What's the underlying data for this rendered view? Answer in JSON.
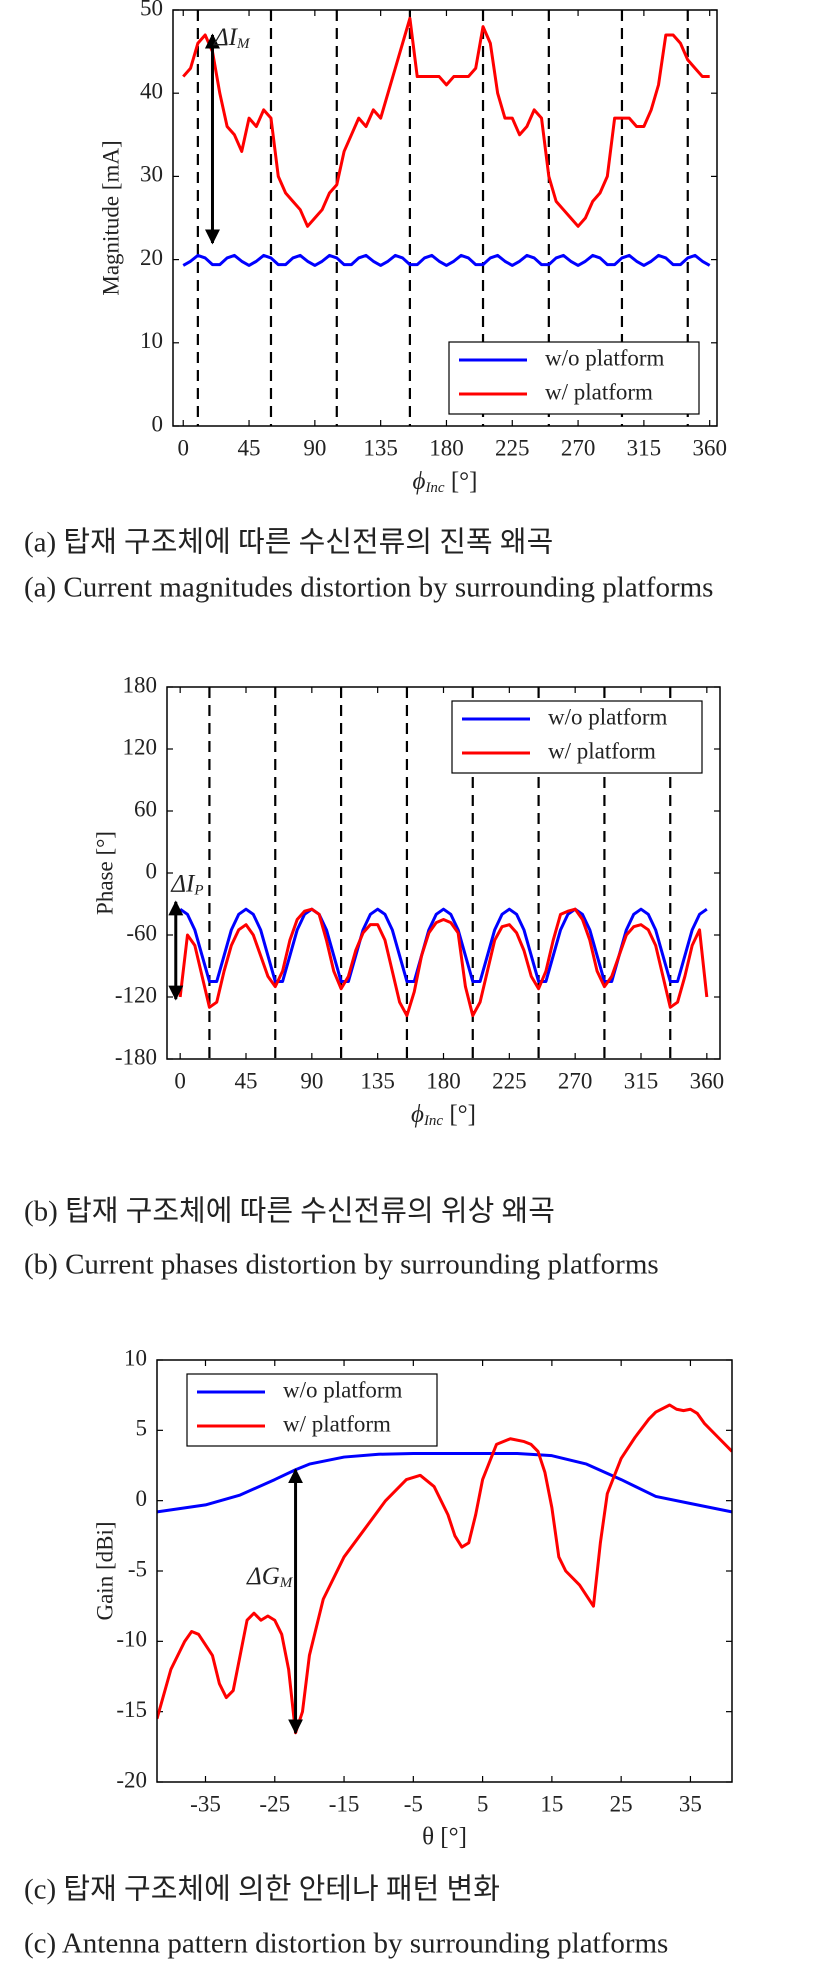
{
  "chart_data": [
    {
      "type": "line",
      "ylabel": "Magnitude [mA]",
      "xlabel": {
        "text": "ϕ",
        "sub": "Inc",
        "rest": " [°]"
      },
      "captions": [
        "(a) 탑재 구조체에 따른 수신전류의 진폭 왜곡",
        "(a) Current magnitudes distortion by surrounding platforms"
      ],
      "xlim": [
        -7,
        365
      ],
      "ylim": [
        0,
        50
      ],
      "xticks": [
        0,
        45,
        90,
        135,
        180,
        225,
        270,
        315,
        360
      ],
      "yticks": [
        0,
        10,
        20,
        30,
        40,
        50
      ],
      "legend": "lower right",
      "vlines": [
        10,
        60,
        105,
        155,
        205,
        250,
        300,
        345
      ],
      "arrow": {
        "x": 20,
        "y1": 22,
        "y2": 47
      },
      "annotation": {
        "x": 21,
        "y": 46.5,
        "label": {
          "text": "ΔI",
          "sub": "M"
        }
      },
      "x": [
        0,
        5,
        10,
        15,
        20,
        25,
        30,
        35,
        40,
        45,
        50,
        55,
        60,
        65,
        70,
        75,
        80,
        85,
        90,
        95,
        100,
        105,
        110,
        115,
        120,
        125,
        130,
        135,
        140,
        145,
        150,
        155,
        160,
        165,
        170,
        175,
        180,
        185,
        190,
        195,
        200,
        205,
        210,
        215,
        220,
        225,
        230,
        235,
        240,
        245,
        250,
        255,
        260,
        265,
        270,
        275,
        280,
        285,
        290,
        295,
        300,
        305,
        310,
        315,
        320,
        325,
        330,
        335,
        340,
        345,
        350,
        355,
        360
      ],
      "series": [
        {
          "name": "w/o platform",
          "color": "#0000ff",
          "values": [
            19.3,
            19.8,
            20.5,
            20.2,
            19.4,
            19.4,
            20.2,
            20.5,
            19.8,
            19.3,
            19.8,
            20.5,
            20.2,
            19.4,
            19.4,
            20.2,
            20.5,
            19.8,
            19.3,
            19.8,
            20.5,
            20.2,
            19.4,
            19.4,
            20.2,
            20.5,
            19.8,
            19.3,
            19.8,
            20.5,
            20.2,
            19.4,
            19.4,
            20.2,
            20.5,
            19.8,
            19.3,
            19.8,
            20.5,
            20.2,
            19.4,
            19.4,
            20.2,
            20.5,
            19.8,
            19.3,
            19.8,
            20.5,
            20.2,
            19.4,
            19.4,
            20.2,
            20.5,
            19.8,
            19.3,
            19.8,
            20.5,
            20.2,
            19.4,
            19.4,
            20.2,
            20.5,
            19.8,
            19.3,
            19.8,
            20.5,
            20.2,
            19.4,
            19.4,
            20.2,
            20.5,
            19.8,
            19.3
          ]
        },
        {
          "name": "w/ platform",
          "color": "#ff0000",
          "values": [
            42,
            43,
            46,
            47,
            45,
            40,
            36,
            35,
            33,
            37,
            36,
            38,
            37,
            30,
            28,
            27,
            26,
            24,
            25,
            26,
            28,
            29,
            33,
            35,
            37,
            36,
            38,
            37,
            40,
            43,
            46,
            49,
            42,
            42,
            42,
            42,
            41,
            42,
            42,
            42,
            43,
            48,
            46,
            40,
            37,
            37,
            35,
            36,
            38,
            37,
            30,
            27,
            26,
            25,
            24,
            25,
            27,
            28,
            30,
            37,
            37,
            37,
            36,
            36,
            38,
            41,
            47,
            47,
            46,
            44,
            43,
            42,
            42
          ]
        }
      ]
    },
    {
      "type": "line",
      "ylabel": "Phase [°]",
      "xlabel": {
        "text": "ϕ",
        "sub": "Inc",
        "rest": " [°]"
      },
      "captions": [
        "(b) 탑재 구조체에 따른 수신전류의 위상 왜곡",
        "(b) Current phases distortion by surrounding platforms"
      ],
      "xlim": [
        -9,
        369
      ],
      "ylim": [
        -180,
        180
      ],
      "xticks": [
        0,
        45,
        90,
        135,
        180,
        225,
        270,
        315,
        360
      ],
      "yticks": [
        -180,
        -120,
        -60,
        0,
        60,
        120,
        180
      ],
      "legend": "upper right",
      "vlines": [
        20,
        65,
        110,
        155,
        200,
        245,
        290,
        335
      ],
      "arrow": {
        "x": -3,
        "y1": -122,
        "y2": -28
      },
      "annotation": {
        "x": -6,
        "y": -12,
        "label": {
          "text": "ΔI",
          "sub": "P"
        }
      },
      "x": [
        0,
        5,
        10,
        15,
        20,
        25,
        30,
        35,
        40,
        45,
        50,
        55,
        60,
        65,
        70,
        75,
        80,
        85,
        90,
        95,
        100,
        105,
        110,
        115,
        120,
        125,
        130,
        135,
        140,
        145,
        150,
        155,
        160,
        165,
        170,
        175,
        180,
        185,
        190,
        195,
        200,
        205,
        210,
        215,
        220,
        225,
        230,
        235,
        240,
        245,
        250,
        255,
        260,
        265,
        270,
        275,
        280,
        285,
        290,
        295,
        300,
        305,
        310,
        315,
        320,
        325,
        330,
        335,
        340,
        345,
        350,
        355,
        360
      ],
      "series": [
        {
          "name": "w/o platform",
          "color": "#0000ff",
          "values": [
            -35,
            -40,
            -55,
            -80,
            -105,
            -105,
            -80,
            -55,
            -40,
            -35,
            -40,
            -55,
            -80,
            -105,
            -105,
            -80,
            -55,
            -40,
            -35,
            -40,
            -55,
            -80,
            -105,
            -105,
            -80,
            -55,
            -40,
            -35,
            -40,
            -55,
            -80,
            -105,
            -105,
            -80,
            -55,
            -40,
            -35,
            -40,
            -55,
            -80,
            -105,
            -105,
            -80,
            -55,
            -40,
            -35,
            -40,
            -55,
            -80,
            -105,
            -105,
            -80,
            -55,
            -40,
            -35,
            -40,
            -55,
            -80,
            -105,
            -105,
            -80,
            -55,
            -40,
            -35,
            -40,
            -55,
            -80,
            -105,
            -105,
            -80,
            -55,
            -40,
            -35
          ]
        },
        {
          "name": "w/ platform",
          "color": "#ff0000",
          "values": [
            -120,
            -60,
            -70,
            -100,
            -130,
            -125,
            -95,
            -70,
            -55,
            -50,
            -60,
            -80,
            -100,
            -110,
            -95,
            -65,
            -45,
            -37,
            -35,
            -40,
            -65,
            -95,
            -112,
            -100,
            -75,
            -58,
            -50,
            -50,
            -65,
            -95,
            -125,
            -138,
            -115,
            -80,
            -58,
            -48,
            -45,
            -48,
            -58,
            -110,
            -138,
            -125,
            -95,
            -65,
            -52,
            -50,
            -58,
            -75,
            -100,
            -112,
            -95,
            -65,
            -40,
            -37,
            -35,
            -45,
            -65,
            -95,
            -110,
            -100,
            -80,
            -60,
            -52,
            -50,
            -55,
            -70,
            -100,
            -130,
            -125,
            -100,
            -70,
            -55,
            -120
          ]
        }
      ]
    },
    {
      "type": "line",
      "ylabel": "Gain [dBi]",
      "xlabel": "θ [°]",
      "captions": [
        "(c) 탑재 구조체에 의한 안테나 패턴 변화",
        "(c) Antenna pattern distortion by surrounding platforms"
      ],
      "xlim": [
        -42,
        41
      ],
      "ylim": [
        -20,
        10
      ],
      "xticks": [
        -35,
        -25,
        -15,
        -5,
        5,
        15,
        25,
        35
      ],
      "yticks": [
        -20,
        -15,
        -10,
        -5,
        0,
        5,
        10
      ],
      "legend": "upper left",
      "arrow": {
        "x": -22,
        "y1": -16.5,
        "y2": 2.2
      },
      "annotation": {
        "x": -29,
        "y": -5.5,
        "label": {
          "text": "ΔG",
          "sub": "M"
        }
      },
      "series": [
        {
          "name": "w/o platform",
          "color": "#0000ff",
          "x": [
            -42,
            -35,
            -30,
            -25,
            -22,
            -20,
            -15,
            -10,
            -5,
            0,
            5,
            10,
            15,
            20,
            25,
            30,
            35,
            41
          ],
          "values": [
            -0.8,
            -0.3,
            0.4,
            1.5,
            2.2,
            2.6,
            3.1,
            3.3,
            3.35,
            3.35,
            3.35,
            3.35,
            3.2,
            2.6,
            1.5,
            0.3,
            -0.2,
            -0.8
          ]
        },
        {
          "name": "w/ platform",
          "color": "#ff0000",
          "x": [
            -42,
            -40,
            -38,
            -37,
            -36,
            -34,
            -33,
            -32,
            -31,
            -30,
            -29,
            -28,
            -27,
            -26,
            -25,
            -24,
            -23,
            -22,
            -21,
            -20,
            -18,
            -15,
            -12,
            -9,
            -6,
            -4,
            -2,
            0,
            1,
            2,
            3,
            4,
            5,
            7,
            9,
            11,
            12,
            13,
            14,
            15,
            16,
            17,
            19,
            21,
            22,
            23,
            25,
            27,
            29,
            30,
            32,
            33,
            34,
            35,
            36,
            37,
            39,
            41
          ],
          "values": [
            -15.5,
            -12,
            -10,
            -9.3,
            -9.5,
            -11,
            -13,
            -14,
            -13.5,
            -11,
            -8.5,
            -8,
            -8.5,
            -8.2,
            -8.5,
            -9.5,
            -12,
            -16.5,
            -15,
            -11,
            -7,
            -4,
            -2,
            0,
            1.5,
            1.8,
            1,
            -1,
            -2.5,
            -3.3,
            -3,
            -1,
            1.5,
            4,
            4.4,
            4.2,
            4,
            3.5,
            2,
            -0.5,
            -4,
            -5,
            -6,
            -7.5,
            -3,
            0.5,
            3,
            4.5,
            5.8,
            6.3,
            6.8,
            6.5,
            6.4,
            6.5,
            6.2,
            5.5,
            4.5,
            3.5
          ]
        }
      ]
    }
  ]
}
